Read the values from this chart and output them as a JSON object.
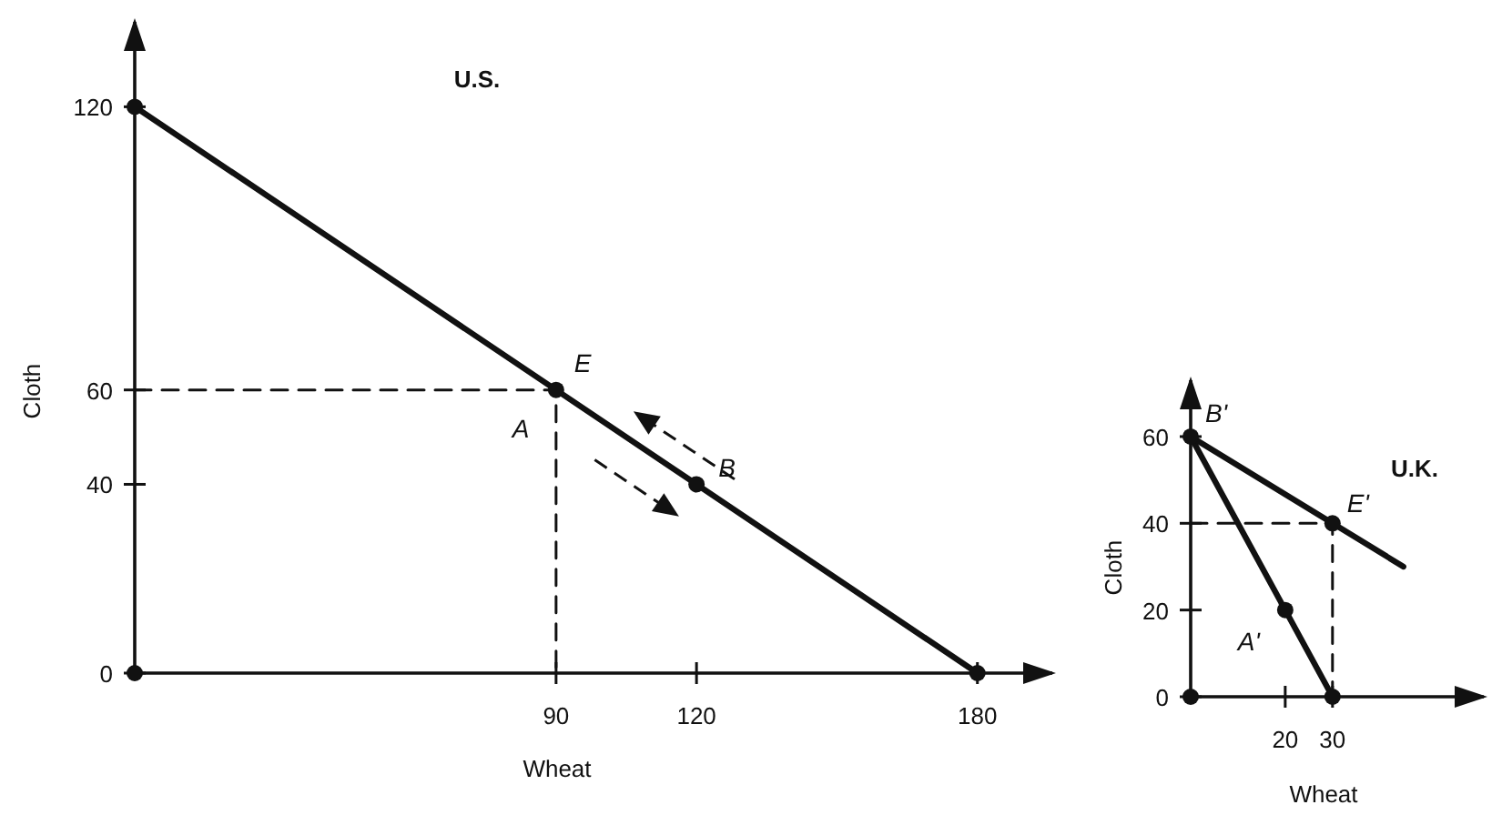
{
  "chart_data": [
    {
      "type": "line",
      "title": "U.S.",
      "xlabel": "Wheat",
      "ylabel": "Cloth",
      "xlim": [
        0,
        196
      ],
      "ylim": [
        0,
        138
      ],
      "xticks": [
        90,
        120,
        180
      ],
      "yticks": [
        0,
        40,
        60,
        120
      ],
      "grid": false,
      "series": [
        {
          "color": "#111111",
          "x": [
            0,
            180
          ],
          "values": [
            120,
            0
          ],
          "marker": "none",
          "line_style": "solid"
        },
        {
          "color": "#111111",
          "x": [
            0,
            90,
            90
          ],
          "values": [
            60,
            60,
            0
          ],
          "marker": "none",
          "line_style": "dashed"
        },
        {
          "type": "scatter",
          "color": "#111111",
          "x": [
            0,
            0,
            90,
            120,
            180
          ],
          "values": [
            0,
            120,
            60,
            40,
            0
          ],
          "marker": "circle"
        }
      ],
      "annotations": [
        {
          "text": "E",
          "x": 90,
          "y": 60
        },
        {
          "text": "A",
          "x": 90,
          "y": 60
        },
        {
          "text": "B",
          "x": 120,
          "y": 40
        }
      ]
    },
    {
      "type": "line",
      "title": "U.K.",
      "xlabel": "Wheat",
      "ylabel": "Cloth",
      "xlim": [
        0,
        62
      ],
      "ylim": [
        0,
        73
      ],
      "xticks": [
        20,
        30
      ],
      "yticks": [
        0,
        20,
        40,
        60
      ],
      "grid": false,
      "series": [
        {
          "color": "#111111",
          "x": [
            0,
            30
          ],
          "values": [
            60,
            0
          ],
          "marker": "none",
          "line_style": "solid"
        },
        {
          "color": "#111111",
          "x": [
            0,
            45
          ],
          "values": [
            60,
            30
          ],
          "marker": "none",
          "line_style": "solid"
        },
        {
          "color": "#111111",
          "x": [
            0,
            30,
            30
          ],
          "values": [
            40,
            40,
            0
          ],
          "marker": "none",
          "line_style": "dashed"
        },
        {
          "type": "scatter",
          "color": "#111111",
          "x": [
            0,
            0,
            20,
            30,
            30
          ],
          "values": [
            0,
            60,
            20,
            40,
            0
          ],
          "marker": "circle"
        }
      ],
      "annotations": [
        {
          "text": "B'",
          "x": 0,
          "y": 60
        },
        {
          "text": "E'",
          "x": 30,
          "y": 40
        },
        {
          "text": "A'",
          "x": 20,
          "y": 20
        }
      ]
    }
  ]
}
